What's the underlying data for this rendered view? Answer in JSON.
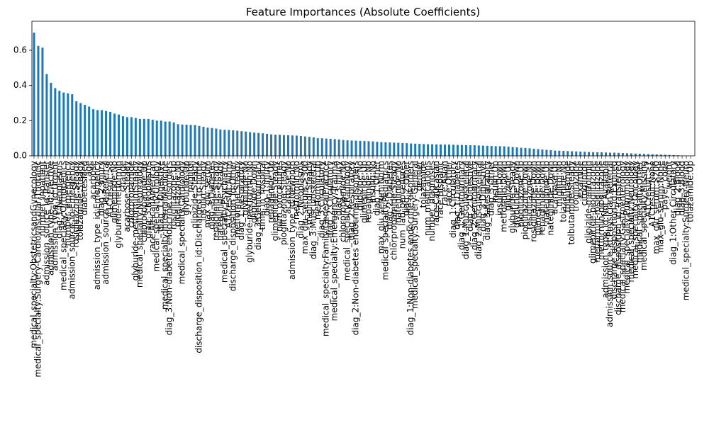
{
  "chart_data": {
    "type": "bar",
    "title": "Feature Importances (Absolute Coefficients)",
    "color": "#1f77b4",
    "ylim": [
      0,
      0.765
    ],
    "yticks": [
      {
        "value": 0,
        "label": "0.0"
      },
      {
        "value": 0.2,
        "label": "0.2"
      },
      {
        "value": 0.4,
        "label": "0.4"
      },
      {
        "value": 0.6,
        "label": "0.6"
      }
    ],
    "categories": [
      "medical_specialty:ObstetricsandGynecology",
      "medical_specialty:Surgery-Cardiovascular/Thoracic",
      "number_inpatient",
      "admission_source_id:Transfer",
      "admission_type_id:Elective",
      "admission_type_id:Urgent",
      "diag_1:Neoplasms",
      "medical_specialty:Orthopedics",
      "number_emergency",
      "admission_source_id:Emergency",
      "rosiglitazone:Steady",
      "tolazamide:Steady",
      "diabetesMed",
      "age",
      "acarbose",
      "admission_type_id:Emergency",
      "diag_2:Injury",
      "admission_source_id:Referral",
      "A1Cresult:>8",
      "glimepiride:No",
      "glyburide-metformin",
      "change",
      "acarbose:Steady",
      "chlorpropamide",
      "glyburide-metformin:Steady",
      "medical_specialty:Nephrology",
      "chlorpropamide:Up",
      "diag_3:Neoplasms",
      "race:AfricanAmerican",
      "medical_specialty:Urology",
      "diag_1:Digestive",
      "medical_specialty:InternalMedicine",
      "diag_3:Non-diabetes endocrine disorders",
      "rosiglitazone:Up",
      "pioglitazone:No",
      "medical_specialty:Cardiology",
      "glyburide:Up",
      "miglitol",
      "glipizide:Steady",
      "discharge_disposition_id:Discharged to home",
      "insulin:Steady",
      "max_glu_serum",
      "diag_3:Diabetes",
      "repaglinide:Steady",
      "nateglinide:Steady",
      "medical_specialty:Psychiatry",
      "A1Cresult:Norm",
      "discharge_disposition_id:Other",
      "metformin:Steady",
      "diag_1:Respiratory",
      "glyburide:No",
      "glyburide-metformin:No",
      "glipizide:Down",
      "diag_3:Genitourinary",
      "time_in_hospital",
      "diag_1:Injury",
      "repaglinide:Up",
      "glimepiride:Steady",
      "num_procedures",
      "pioglitazone:Steady",
      "acarbose:No",
      "admission_type_id:Newborn",
      "metformin:No",
      "diag_2:Neoplasms",
      "max_glu_serum:>300",
      "miglitol:Steady",
      "diag_3:Musculoskeletal",
      "metformin:Up",
      "diag_3:Circulatory",
      "medical_specialty:Family/GeneralPractice",
      "diag_2:Circulatory",
      "medical_specialty:Emergency/Trauma",
      "diag_3:Injury",
      "chlorpropamide:No",
      "medical_specialty:Radiology",
      "diag_2:Respiratory",
      "diag_2:Non-diabetes endocrine disorders",
      "glipizide:No",
      "glimepiride:Up",
      "repaglinide:No",
      "insulin:No",
      "diag_1:Other",
      "max_glu_serum:Norm",
      "medical_specialty:Pediatrics",
      "diag_2:Diabetes",
      "chlorpropamide:Steady",
      "nateglinide:No",
      "num_lab_procedures",
      "diag_2:Other",
      "diag_1:Non-diabetes endocrine disorders",
      "medical_specialty:Surgery-General",
      "gender",
      "tolazamide",
      "num_medications",
      "number_diagnoses",
      "race:Caucasian",
      "race:Hispanic",
      "race:Asian",
      "race:Other",
      "diag_1:Circulatory",
      "diag_1:Diabetes",
      "diag_1:Genitourinary",
      "diag_1:Musculoskeletal",
      "diag_2:Digestive",
      "diag_2:Genitourinary",
      "diag_2:Musculoskeletal",
      "diag_3:Digestive",
      "diag_3:Respiratory",
      "diag_3:Other",
      "insulin:Up",
      "insulin:Down",
      "metformin:Down",
      "glipizide:Up",
      "glyburide:Steady",
      "glyburide:Down",
      "pioglitazone:Up",
      "pioglitazone:Down",
      "rosiglitazone:No",
      "rosiglitazone:Down",
      "glimepiride:Down",
      "repaglinide:Down",
      "nateglinide:Up",
      "nateglinide:Down",
      "acarbose:Up",
      "miglitol:No",
      "tolazamide:No",
      "tolbutamide",
      "tolbutamide:Steady",
      "troglitazone",
      "examide",
      "citoglipton",
      "glipizide-metformin",
      "glimepiride-pioglitazone",
      "metformin-rosiglitazone",
      "metformin-pioglitazone",
      "admission_type_id:Not Available",
      "admission_source_id:Physician Referral",
      "discharge_disposition_id:Expired",
      "discharge_disposition_id:Transferred",
      "medical_specialty:Gastroenterology",
      "medical_specialty:Pulmonology",
      "medical_specialty:Neurology",
      "medical_specialty:Oncology",
      "medical_specialty:Other",
      "medical_specialty:Missing",
      "A1Cresult:>7",
      "A1Cresult:None",
      "max_glu_serum:>200",
      "max_glu_serum:None",
      "payer_code",
      "weight",
      "diag_1:Other Circulatory",
      "diag_2:Blood",
      "diag_3:Blood",
      "medical_specialty:Surgery-Neuro",
      "tolazamide:Up"
    ],
    "values": [
      0.7,
      0.625,
      0.615,
      0.465,
      0.415,
      0.385,
      0.37,
      0.36,
      0.355,
      0.35,
      0.31,
      0.3,
      0.29,
      0.28,
      0.265,
      0.26,
      0.26,
      0.255,
      0.25,
      0.24,
      0.235,
      0.225,
      0.22,
      0.22,
      0.215,
      0.21,
      0.21,
      0.21,
      0.205,
      0.2,
      0.2,
      0.195,
      0.195,
      0.19,
      0.18,
      0.178,
      0.177,
      0.176,
      0.175,
      0.17,
      0.165,
      0.16,
      0.158,
      0.155,
      0.15,
      0.148,
      0.147,
      0.145,
      0.143,
      0.14,
      0.138,
      0.135,
      0.132,
      0.13,
      0.128,
      0.125,
      0.122,
      0.12,
      0.12,
      0.118,
      0.117,
      0.116,
      0.115,
      0.113,
      0.11,
      0.108,
      0.105,
      0.1,
      0.1,
      0.098,
      0.097,
      0.095,
      0.093,
      0.09,
      0.088,
      0.087,
      0.086,
      0.085,
      0.084,
      0.083,
      0.082,
      0.08,
      0.078,
      0.077,
      0.076,
      0.075,
      0.074,
      0.073,
      0.072,
      0.07,
      0.069,
      0.068,
      0.067,
      0.066,
      0.066,
      0.065,
      0.065,
      0.064,
      0.064,
      0.063,
      0.062,
      0.062,
      0.061,
      0.06,
      0.06,
      0.059,
      0.058,
      0.057,
      0.056,
      0.055,
      0.055,
      0.054,
      0.052,
      0.05,
      0.048,
      0.046,
      0.045,
      0.043,
      0.04,
      0.038,
      0.036,
      0.034,
      0.032,
      0.03,
      0.029,
      0.028,
      0.027,
      0.026,
      0.025,
      0.024,
      0.023,
      0.022,
      0.021,
      0.02,
      0.02,
      0.019,
      0.018,
      0.018,
      0.017,
      0.016,
      0.015,
      0.014,
      0.013,
      0.012,
      0.011,
      0.01,
      0.009,
      0.008,
      0.007,
      0.006,
      0.005,
      0.004,
      0.003,
      0.002,
      0.001,
      0.0
    ]
  }
}
